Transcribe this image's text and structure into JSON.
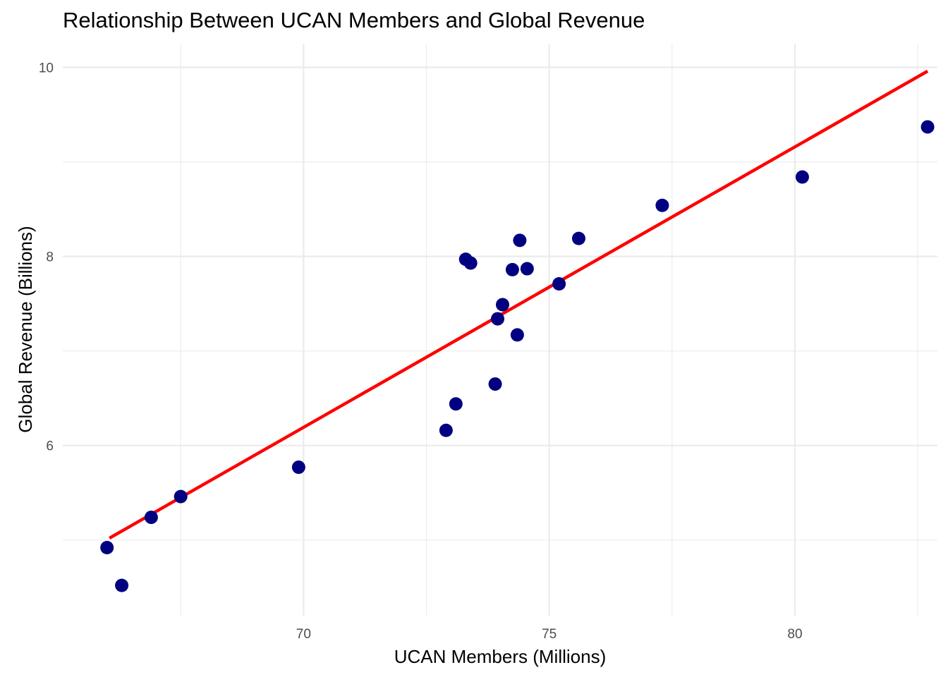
{
  "chart_data": {
    "type": "scatter",
    "title": "Relationship Between UCAN Members and Global Revenue",
    "xlabel": "UCAN Members (Millions)",
    "ylabel": "Global Revenue (Billions)",
    "xlim": [
      65.1,
      82.9
    ],
    "ylim": [
      4.2,
      10.25
    ],
    "x_major_ticks": [
      70,
      75,
      80
    ],
    "x_minor_ticks": [
      67.5,
      72.5,
      77.5,
      82.5
    ],
    "y_major_ticks": [
      6,
      8,
      10
    ],
    "y_minor_ticks": [
      5,
      7,
      9
    ],
    "x_tick_labels": [
      "70",
      "75",
      "80"
    ],
    "y_tick_labels": [
      "6",
      "8",
      "10"
    ],
    "grid": true,
    "points": [
      {
        "x": 66.0,
        "y": 4.92
      },
      {
        "x": 66.3,
        "y": 4.52
      },
      {
        "x": 66.9,
        "y": 5.24
      },
      {
        "x": 67.5,
        "y": 5.46
      },
      {
        "x": 69.9,
        "y": 5.77
      },
      {
        "x": 72.9,
        "y": 6.16
      },
      {
        "x": 73.1,
        "y": 6.44
      },
      {
        "x": 73.3,
        "y": 7.97
      },
      {
        "x": 73.4,
        "y": 7.93
      },
      {
        "x": 73.9,
        "y": 6.65
      },
      {
        "x": 73.95,
        "y": 7.34
      },
      {
        "x": 74.05,
        "y": 7.49
      },
      {
        "x": 74.25,
        "y": 7.86
      },
      {
        "x": 74.35,
        "y": 7.17
      },
      {
        "x": 74.4,
        "y": 8.17
      },
      {
        "x": 74.55,
        "y": 7.87
      },
      {
        "x": 75.2,
        "y": 7.71
      },
      {
        "x": 75.6,
        "y": 8.19
      },
      {
        "x": 77.3,
        "y": 8.54
      },
      {
        "x": 80.15,
        "y": 8.84
      },
      {
        "x": 82.7,
        "y": 9.37
      }
    ],
    "trend_line": {
      "x": [
        66.05,
        82.7
      ],
      "y": [
        5.02,
        9.96
      ]
    },
    "colors": {
      "points": "#000080",
      "trend_line": "#ff0000",
      "grid": "#ebebeb",
      "tick_text": "#4d4d4d",
      "text": "#000000",
      "background": "#ffffff"
    }
  }
}
